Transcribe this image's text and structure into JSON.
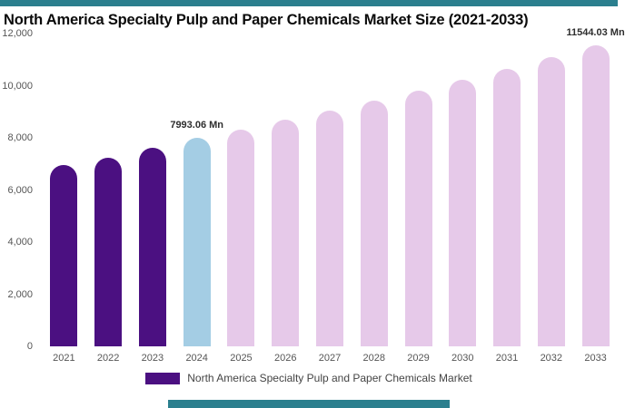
{
  "accent": {
    "teal": "#2b7f8e"
  },
  "title": "North America Specialty Pulp and Paper Chemicals Market Size (2021-2033)",
  "y_axis": {
    "ticks": [
      "12,000",
      "10,000",
      "8,000",
      "6,000",
      "4,000",
      "2,000",
      "0"
    ]
  },
  "annotations": [
    {
      "year": "2024",
      "text": "7993.06 Mn"
    },
    {
      "year": "2033",
      "text": "11544.03 Mn"
    }
  ],
  "legend": {
    "label": "North America Specialty Pulp and Paper Chemicals Market",
    "swatch_color": "#4b1081"
  },
  "chart_data": {
    "type": "bar",
    "title": "North America Specialty Pulp and Paper Chemicals Market Size (2021-2033)",
    "categories": [
      "2021",
      "2022",
      "2023",
      "2024",
      "2025",
      "2026",
      "2027",
      "2028",
      "2029",
      "2030",
      "2031",
      "2032",
      "2033"
    ],
    "values": [
      6950,
      7250,
      7620,
      7993.06,
      8330,
      8680,
      9040,
      9420,
      9810,
      10220,
      10640,
      11080,
      11544.03
    ],
    "bar_roles": [
      "historical",
      "historical",
      "historical",
      "current",
      "forecast",
      "forecast",
      "forecast",
      "forecast",
      "forecast",
      "forecast",
      "forecast",
      "forecast",
      "forecast"
    ],
    "colors": {
      "historical": "#4b1081",
      "current": "#a4cde4",
      "forecast": "#e6c9e9"
    },
    "xlabel": "",
    "ylabel": "",
    "ylim": [
      0,
      12000
    ],
    "grid": false,
    "legend_position": "bottom"
  }
}
